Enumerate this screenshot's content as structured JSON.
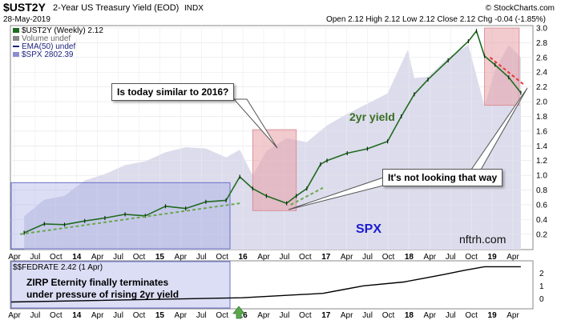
{
  "header": {
    "symbol": "$UST2Y",
    "description": "2-Year US Treasury Yield (EOD)",
    "exchange": "INDX",
    "date": "28-May-2019",
    "ohlc": "Open 2.12  High 2.12  Low 2.12  Close 2.12  Chg -0.04 (-1.85%)",
    "brand": "© StockCharts.com"
  },
  "legend": {
    "main_series": "$UST2Y (Weekly) 2.12",
    "volume": "Volume undef",
    "ema": "EMA(50) undef",
    "spx": "$SPX 2802.39"
  },
  "annotations": {
    "question": "Is today similar to 2016?",
    "answer": "It's not looking that way",
    "yield_label": "2yr yield",
    "spx_label": "SPX",
    "watermark": "nftrh.com",
    "lower_note_line1": "ZIRP Eternity finally terminates",
    "lower_note_line2": "under pressure of rising 2yr yield"
  },
  "lower_panel": {
    "title": "$$FEDRATE 2.42 (1 Apr)",
    "y_ticks": [
      "2",
      "1",
      "0"
    ]
  },
  "colors": {
    "yield_up": "#1f6b1f",
    "yield_down": "#0b2a0b",
    "spx_area": "#dcdcec",
    "blue_box": "#9aa0e6",
    "pink_box": "#e7a1a8",
    "trend_dash": "#6aa84f",
    "red_dash": "#e53935",
    "fed_line": "#000000"
  },
  "chart_data": [
    {
      "type": "line",
      "title": "$UST2Y 2-Year US Treasury Yield (EOD)",
      "period": "Weekly",
      "x_tick_labels": [
        "Apr",
        "Jul",
        "Oct",
        "14",
        "Apr",
        "Jul",
        "Oct",
        "15",
        "Apr",
        "Jul",
        "Oct",
        "16",
        "Apr",
        "Jul",
        "Oct",
        "17",
        "Apr",
        "Jul",
        "Oct",
        "18",
        "Apr",
        "Jul",
        "Oct",
        "19",
        "Apr"
      ],
      "y_tick_labels": [
        "3.0",
        "2.8",
        "2.6",
        "2.4",
        "2.2",
        "2.0",
        "1.8",
        "1.6",
        "1.4",
        "1.2",
        "1.0",
        "0.8",
        "0.6",
        "0.4",
        "0.2"
      ],
      "ylim": [
        0.1,
        3.0
      ],
      "series": [
        {
          "name": "$UST2Y (Weekly) 2.12",
          "x": [
            2013.25,
            2013.5,
            2013.75,
            2014.0,
            2014.25,
            2014.5,
            2014.75,
            2015.0,
            2015.25,
            2015.5,
            2015.75,
            2015.92,
            2016.08,
            2016.25,
            2016.5,
            2016.62,
            2016.75,
            2016.92,
            2017.0,
            2017.25,
            2017.5,
            2017.75,
            2017.92,
            2018.08,
            2018.25,
            2018.5,
            2018.75,
            2018.85,
            2018.95,
            2019.08,
            2019.25,
            2019.4
          ],
          "values": [
            0.22,
            0.34,
            0.33,
            0.38,
            0.42,
            0.47,
            0.45,
            0.58,
            0.55,
            0.64,
            0.66,
            0.98,
            0.82,
            0.72,
            0.62,
            0.72,
            0.82,
            1.15,
            1.2,
            1.3,
            1.36,
            1.46,
            1.8,
            2.1,
            2.3,
            2.56,
            2.82,
            2.96,
            2.62,
            2.5,
            2.33,
            2.12
          ]
        },
        {
          "name": "$SPX 2802.39",
          "x": [
            2013.25,
            2013.5,
            2013.75,
            2014.0,
            2014.25,
            2014.5,
            2014.75,
            2015.0,
            2015.25,
            2015.5,
            2015.75,
            2015.92,
            2016.08,
            2016.25,
            2016.5,
            2016.75,
            2017.0,
            2017.25,
            2017.5,
            2017.75,
            2018.0,
            2018.08,
            2018.25,
            2018.5,
            2018.75,
            2018.95,
            2019.08,
            2019.25,
            2019.4
          ],
          "values": [
            1560,
            1690,
            1720,
            1840,
            1890,
            1960,
            1990,
            2060,
            2100,
            2090,
            2020,
            2080,
            1880,
            2070,
            2170,
            2140,
            2270,
            2360,
            2440,
            2520,
            2860,
            2640,
            2650,
            2800,
            2900,
            2420,
            2700,
            2900,
            2800
          ]
        }
      ]
    },
    {
      "type": "line",
      "title": "$$FEDRATE 2.42 (1 Apr)",
      "ylim": [
        -0.2,
        2.6
      ],
      "series": [
        {
          "name": "$$FEDRATE 2.42 (1 Apr)",
          "x": [
            2013.0,
            2015.95,
            2016.95,
            2017.2,
            2017.45,
            2017.95,
            2018.2,
            2018.45,
            2018.7,
            2018.95,
            2019.4
          ],
          "values": [
            0.09,
            0.37,
            0.66,
            0.91,
            1.16,
            1.41,
            1.66,
            1.91,
            2.18,
            2.42,
            2.42
          ]
        }
      ]
    }
  ]
}
